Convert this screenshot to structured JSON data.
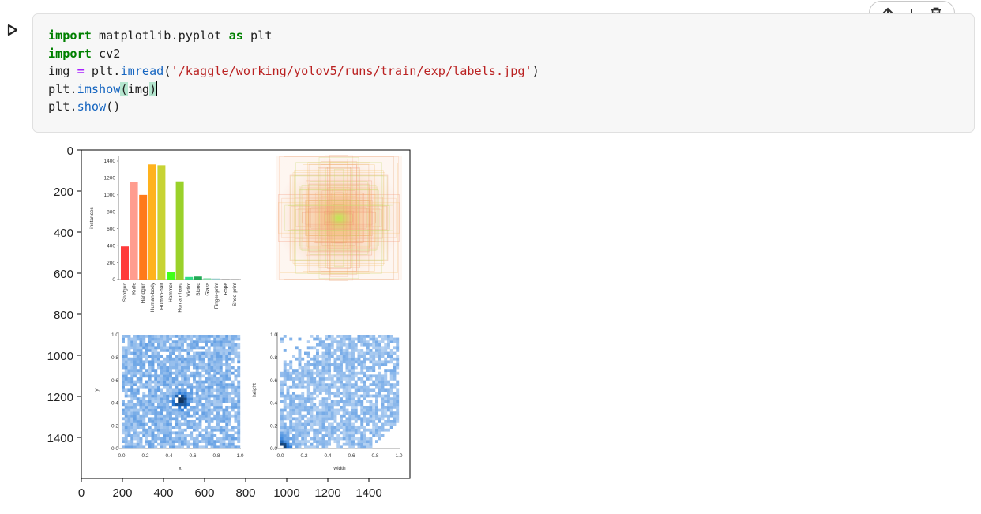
{
  "code_cell": {
    "lines": {
      "l1": {
        "kw1": "import",
        "mod": " matplotlib.pyplot ",
        "kw2": "as",
        "alias": " plt"
      },
      "l2": {
        "kw": "import",
        "mod": " cv2"
      },
      "l3": {
        "var": "img ",
        "op": "=",
        "pre": " plt.",
        "fn": "imread",
        "open": "(",
        "str": "'/kaggle/working/yolov5/runs/train/exp/labels.jpg'",
        "close": ")"
      },
      "l4": {
        "pre": "plt.",
        "fn": "imshow",
        "open": "(",
        "arg": "img",
        "close": ")"
      },
      "l5": {
        "pre": "plt.",
        "fn": "show",
        "parens": "()"
      }
    }
  },
  "toolbar": {
    "icons": [
      "arrow-up-icon",
      "arrow-down-icon",
      "trash-icon"
    ]
  },
  "output": {
    "x_ticks": [
      "0",
      "200",
      "400",
      "600",
      "800",
      "1000",
      "1200",
      "1400"
    ],
    "y_ticks": [
      "0",
      "200",
      "400",
      "600",
      "800",
      "1000",
      "1200",
      "1400"
    ],
    "labels_image": {
      "bar_ylabel": "instances",
      "bar_yticks": [
        "0",
        "200",
        "400",
        "600",
        "800",
        "1000",
        "1200",
        "1400"
      ],
      "classes": [
        "Shotgun",
        "Knife",
        "Handgun",
        "Human-body",
        "Human-hair",
        "Hammer",
        "Human-hand",
        "Victim",
        "Blood",
        "Glass",
        "Finger-print",
        "Rope",
        "Shoe-print"
      ],
      "instances": [
        390,
        1150,
        1000,
        1360,
        1350,
        90,
        1160,
        30,
        35,
        15,
        12,
        8,
        6
      ],
      "bar_colors": [
        "#ff3b3b",
        "#ff9d8f",
        "#ff7a1a",
        "#ffb21d",
        "#c7d334",
        "#41ff1a",
        "#9ad12a",
        "#33dd88",
        "#22aa55",
        "#88ddaa",
        "#99cccc",
        "#aaaaaa",
        "#999999"
      ],
      "xy_xlabel": "x",
      "xy_ylabel": "y",
      "wh_xlabel": "width",
      "wh_ylabel": "height",
      "hist_ticks": [
        "0.0",
        "0.2",
        "0.4",
        "0.6",
        "0.8",
        "1.0"
      ]
    }
  }
}
